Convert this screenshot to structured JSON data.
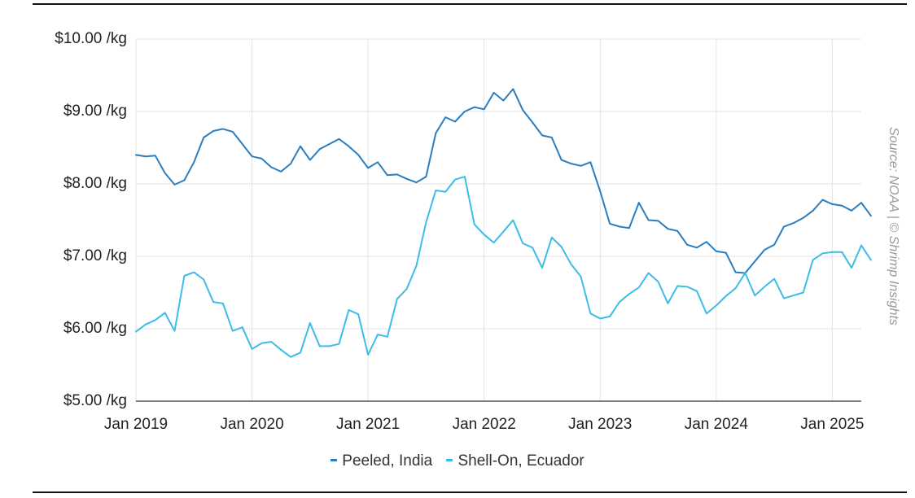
{
  "source_note": "Source: NOAA | © Shrimp Insights",
  "colors": {
    "peeled": "#2a7dbf",
    "shell": "#3cbce9",
    "grid": "#e3e3e3",
    "axis": "#333333"
  },
  "chart_data": {
    "type": "line",
    "title": "",
    "xlabel": "",
    "ylabel": "",
    "ylim": [
      5,
      10
    ],
    "y_ticks": [
      5,
      6,
      7,
      8,
      9,
      10
    ],
    "y_tick_labels": [
      "$5.00 /kg",
      "$6.00 /kg",
      "$7.00 /kg",
      "$8.00 /kg",
      "$9.00 /kg",
      "$10.00 /kg"
    ],
    "x_start": "2019-01",
    "x_end": "2025-04",
    "x_ticks": [
      "2019-01",
      "2020-01",
      "2021-01",
      "2022-01",
      "2023-01",
      "2024-01",
      "2025-01"
    ],
    "x_tick_labels": [
      "Jan 2019",
      "Jan 2020",
      "Jan 2021",
      "Jan 2022",
      "Jan 2023",
      "Jan 2024",
      "Jan 2025"
    ],
    "grid": true,
    "legend_position": "bottom-center",
    "series": [
      {
        "name": "Peeled, India",
        "values": [
          8.4,
          8.38,
          8.39,
          8.15,
          7.99,
          8.05,
          8.3,
          8.64,
          8.73,
          8.76,
          8.72,
          8.55,
          8.38,
          8.35,
          8.23,
          8.17,
          8.28,
          8.52,
          8.33,
          8.48,
          8.55,
          8.62,
          8.52,
          8.4,
          8.22,
          8.3,
          8.12,
          8.13,
          8.07,
          8.02,
          8.1,
          8.7,
          8.92,
          8.86,
          9.0,
          9.06,
          9.03,
          9.26,
          9.15,
          9.31,
          9.02,
          8.85,
          8.67,
          8.64,
          8.33,
          8.28,
          8.25,
          8.3,
          7.9,
          7.45,
          7.41,
          7.39,
          7.74,
          7.5,
          7.49,
          7.38,
          7.35,
          7.16,
          7.12,
          7.2,
          7.07,
          7.05,
          6.78,
          6.77,
          6.93,
          7.09,
          7.16,
          7.41,
          7.46,
          7.53,
          7.63,
          7.78,
          7.72,
          7.7,
          7.63,
          7.74,
          7.56
        ]
      },
      {
        "name": "Shell-On, Ecuador",
        "values": [
          5.96,
          6.06,
          6.12,
          6.22,
          5.97,
          6.73,
          6.78,
          6.68,
          6.37,
          6.35,
          5.97,
          6.02,
          5.72,
          5.8,
          5.82,
          5.71,
          5.61,
          5.67,
          6.08,
          5.76,
          5.76,
          5.79,
          6.26,
          6.2,
          5.64,
          5.92,
          5.89,
          6.41,
          6.55,
          6.87,
          7.47,
          7.91,
          7.89,
          8.06,
          8.1,
          7.44,
          7.3,
          7.19,
          7.34,
          7.5,
          7.18,
          7.12,
          6.84,
          7.26,
          7.13,
          6.89,
          6.72,
          6.21,
          6.14,
          6.17,
          6.37,
          6.48,
          6.57,
          6.77,
          6.65,
          6.35,
          6.59,
          6.58,
          6.52,
          6.21,
          6.32,
          6.45,
          6.56,
          6.77,
          6.46,
          6.58,
          6.69,
          6.42,
          6.46,
          6.5,
          6.95,
          7.04,
          7.06,
          7.06,
          6.84,
          7.15,
          6.95
        ]
      }
    ]
  }
}
